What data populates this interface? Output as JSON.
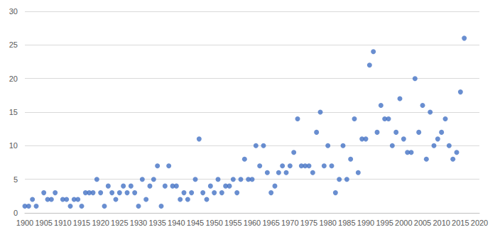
{
  "chart_data": {
    "type": "scatter",
    "marker": "circle",
    "color": "#4472c4",
    "grid": true,
    "x": [
      1900,
      1901,
      1902,
      1903,
      1905,
      1906,
      1907,
      1908,
      1910,
      1911,
      1912,
      1913,
      1914,
      1915,
      1916,
      1917,
      1918,
      1919,
      1920,
      1921,
      1922,
      1923,
      1924,
      1925,
      1926,
      1927,
      1928,
      1929,
      1930,
      1931,
      1932,
      1933,
      1934,
      1935,
      1936,
      1937,
      1938,
      1939,
      1940,
      1941,
      1942,
      1943,
      1944,
      1945,
      1946,
      1947,
      1948,
      1949,
      1950,
      1951,
      1952,
      1953,
      1954,
      1955,
      1956,
      1957,
      1958,
      1959,
      1960,
      1961,
      1962,
      1963,
      1964,
      1965,
      1966,
      1967,
      1968,
      1969,
      1970,
      1971,
      1972,
      1973,
      1974,
      1975,
      1976,
      1977,
      1978,
      1979,
      1980,
      1981,
      1982,
      1983,
      1984,
      1985,
      1986,
      1987,
      1988,
      1989,
      1990,
      1991,
      1992,
      1993,
      1994,
      1995,
      1996,
      1997,
      1998,
      1999,
      2000,
      2001,
      2002,
      2003,
      2004,
      2005,
      2006,
      2007,
      2008,
      2009,
      2010,
      2011,
      2012,
      2013,
      2014,
      2015,
      2016
    ],
    "values": [
      1,
      1,
      2,
      1,
      3,
      2,
      2,
      3,
      2,
      2,
      1,
      2,
      2,
      1,
      3,
      3,
      3,
      5,
      3,
      1,
      4,
      3,
      2,
      3,
      4,
      3,
      4,
      3,
      1,
      5,
      2,
      4,
      5,
      7,
      1,
      4,
      7,
      4,
      4,
      2,
      3,
      2,
      3,
      5,
      11,
      3,
      2,
      4,
      3,
      5,
      3,
      4,
      4,
      5,
      3,
      5,
      8,
      5,
      5,
      10,
      7,
      10,
      6,
      3,
      4,
      6,
      7,
      6,
      7,
      9,
      14,
      7,
      7,
      7,
      6,
      12,
      15,
      7,
      10,
      7,
      3,
      5,
      10,
      5,
      8,
      14,
      6,
      11,
      11,
      22,
      24,
      12,
      16,
      14,
      14,
      10,
      12,
      17,
      11,
      9,
      9,
      20,
      12,
      16,
      8,
      15,
      10,
      11,
      12,
      14,
      10,
      8,
      9,
      18,
      26
    ],
    "xlim": [
      1900,
      2020
    ],
    "xticks": [
      1900,
      1905,
      1910,
      1915,
      1920,
      1925,
      1930,
      1935,
      1940,
      1945,
      1950,
      1955,
      1960,
      1965,
      1970,
      1975,
      1980,
      1985,
      1990,
      1995,
      2000,
      2005,
      2010,
      2015,
      2020
    ],
    "ylim": [
      0,
      30
    ],
    "yticks": [
      0,
      5,
      10,
      15,
      20,
      25,
      30
    ]
  }
}
